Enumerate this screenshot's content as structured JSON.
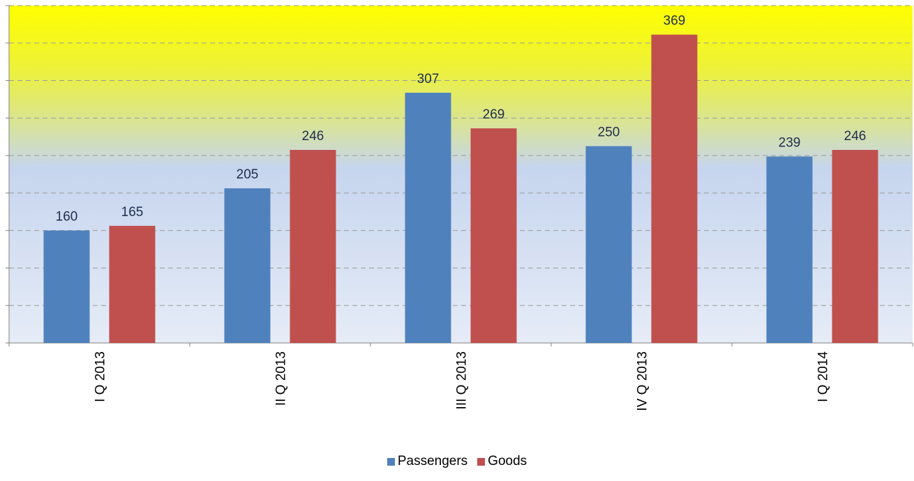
{
  "chart_data": {
    "type": "bar",
    "categories": [
      "I Q 2013",
      "II Q 2013",
      "III Q 2013",
      "IV Q 2013",
      "I Q 2014"
    ],
    "series": [
      {
        "name": "Passengers",
        "values": [
          160,
          205,
          307,
          250,
          239
        ],
        "color": "#4f81bd"
      },
      {
        "name": "Goods",
        "values": [
          165,
          246,
          269,
          369,
          246
        ],
        "color": "#c0504d"
      }
    ],
    "ylim": [
      40,
      400
    ],
    "y_gridlines": [
      80,
      120,
      160,
      200,
      240,
      280,
      320,
      360,
      400
    ],
    "y_tick_labels_visible": false,
    "grid": true,
    "legend_position": "bottom-center",
    "background_gradient": [
      "#ffff00",
      "#c6d5ee",
      "#e6ecf7"
    ]
  }
}
